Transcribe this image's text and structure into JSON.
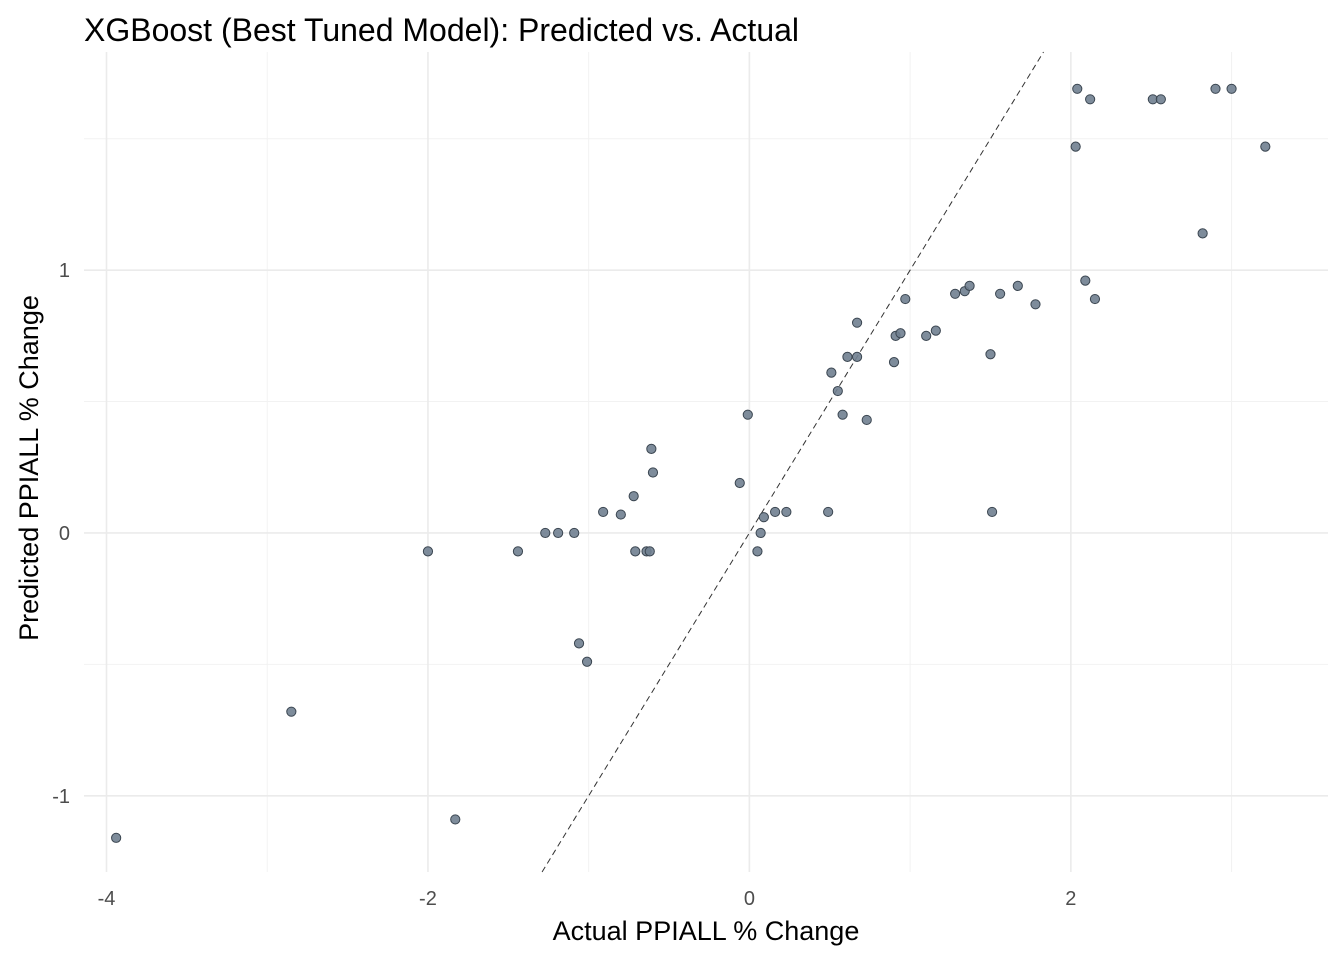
{
  "chart_data": {
    "type": "scatter",
    "title": "XGBoost (Best Tuned Model): Predicted vs. Actual",
    "xlabel": "Actual PPIALL % Change",
    "ylabel": "Predicted PPIALL % Change",
    "xlim": [
      -4.14,
      3.6
    ],
    "ylim": [
      -1.29,
      1.83
    ],
    "x_ticks": [
      -4,
      -2,
      0,
      2
    ],
    "x_tick_labels": [
      "-4",
      "-2",
      "0",
      "2"
    ],
    "y_ticks": [
      -1,
      0,
      1
    ],
    "y_tick_labels": [
      "-1",
      "0",
      "1"
    ],
    "x_minor_ticks": [
      -3,
      -1,
      1,
      3
    ],
    "y_minor_ticks": [
      -0.5,
      0.5,
      1.5
    ],
    "grid": true,
    "reference_line": {
      "slope": 1,
      "intercept": 0,
      "style": "dashed"
    },
    "point_color": "#708090",
    "points": [
      {
        "x": -3.94,
        "y": -1.16
      },
      {
        "x": -2.85,
        "y": -0.68
      },
      {
        "x": -2.0,
        "y": -0.07
      },
      {
        "x": -1.83,
        "y": -1.09
      },
      {
        "x": -1.44,
        "y": -0.07
      },
      {
        "x": -1.27,
        "y": 0.0
      },
      {
        "x": -1.19,
        "y": 0.0
      },
      {
        "x": -1.09,
        "y": 0.0
      },
      {
        "x": -1.06,
        "y": -0.42
      },
      {
        "x": -1.01,
        "y": -0.49
      },
      {
        "x": -0.91,
        "y": 0.08
      },
      {
        "x": -0.8,
        "y": 0.07
      },
      {
        "x": -0.72,
        "y": 0.14
      },
      {
        "x": -0.71,
        "y": -0.07
      },
      {
        "x": -0.64,
        "y": -0.07
      },
      {
        "x": -0.62,
        "y": -0.07
      },
      {
        "x": -0.61,
        "y": 0.32
      },
      {
        "x": -0.6,
        "y": 0.23
      },
      {
        "x": -0.06,
        "y": 0.19
      },
      {
        "x": -0.01,
        "y": 0.45
      },
      {
        "x": 0.05,
        "y": -0.07
      },
      {
        "x": 0.07,
        "y": 0.0
      },
      {
        "x": 0.09,
        "y": 0.06
      },
      {
        "x": 0.16,
        "y": 0.08
      },
      {
        "x": 0.23,
        "y": 0.08
      },
      {
        "x": 0.49,
        "y": 0.08
      },
      {
        "x": 0.51,
        "y": 0.61
      },
      {
        "x": 0.55,
        "y": 0.54
      },
      {
        "x": 0.58,
        "y": 0.45
      },
      {
        "x": 0.61,
        "y": 0.67
      },
      {
        "x": 0.67,
        "y": 0.67
      },
      {
        "x": 0.67,
        "y": 0.8
      },
      {
        "x": 0.73,
        "y": 0.43
      },
      {
        "x": 0.9,
        "y": 0.65
      },
      {
        "x": 0.91,
        "y": 0.75
      },
      {
        "x": 0.94,
        "y": 0.76
      },
      {
        "x": 0.97,
        "y": 0.89
      },
      {
        "x": 1.1,
        "y": 0.75
      },
      {
        "x": 1.16,
        "y": 0.77
      },
      {
        "x": 1.28,
        "y": 0.91
      },
      {
        "x": 1.34,
        "y": 0.92
      },
      {
        "x": 1.37,
        "y": 0.94
      },
      {
        "x": 1.5,
        "y": 0.68
      },
      {
        "x": 1.51,
        "y": 0.08
      },
      {
        "x": 1.56,
        "y": 0.91
      },
      {
        "x": 1.67,
        "y": 0.94
      },
      {
        "x": 1.78,
        "y": 0.87
      },
      {
        "x": 2.03,
        "y": 1.47
      },
      {
        "x": 2.04,
        "y": 1.69
      },
      {
        "x": 2.09,
        "y": 0.96
      },
      {
        "x": 2.12,
        "y": 1.65
      },
      {
        "x": 2.15,
        "y": 0.89
      },
      {
        "x": 2.51,
        "y": 1.65
      },
      {
        "x": 2.56,
        "y": 1.65
      },
      {
        "x": 2.82,
        "y": 1.14
      },
      {
        "x": 2.9,
        "y": 1.69
      },
      {
        "x": 3.0,
        "y": 1.69
      },
      {
        "x": 3.21,
        "y": 1.47
      }
    ]
  }
}
